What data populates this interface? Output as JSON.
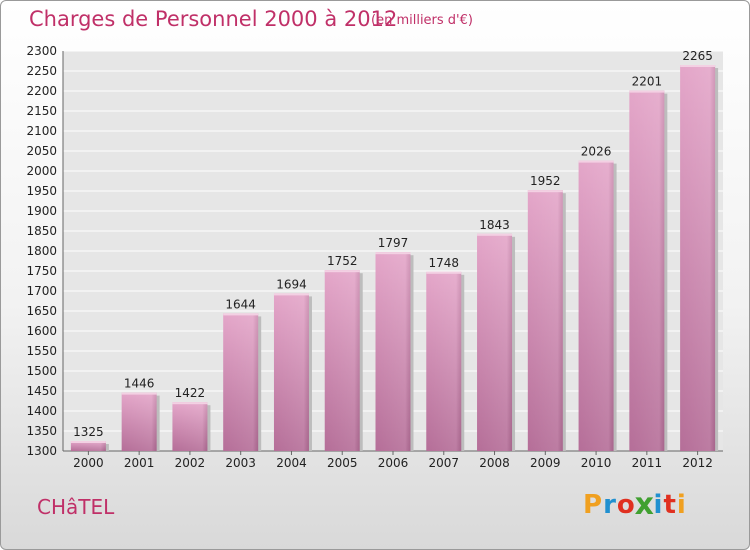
{
  "chart_data": {
    "type": "bar",
    "title": "Charges de Personnel 2000 à 2012",
    "subtitle": "(en milliers d'€)",
    "categories": [
      "2000",
      "2001",
      "2002",
      "2003",
      "2004",
      "2005",
      "2006",
      "2007",
      "2008",
      "2009",
      "2010",
      "2011",
      "2012"
    ],
    "values": [
      1325,
      1446,
      1422,
      1644,
      1694,
      1752,
      1797,
      1748,
      1843,
      1952,
      2026,
      2201,
      2265
    ],
    "ylim": [
      1300,
      2300
    ],
    "ytick_step": 50,
    "grid": true,
    "bar_color": "#d98ab4"
  },
  "footer": {
    "commune": "CHâTEL",
    "logo_letters": [
      "P",
      "r",
      "o",
      "x",
      "i",
      "t",
      "i"
    ],
    "logo_colors": [
      "#f0a020",
      "#2090d0",
      "#e03020",
      "#40a030",
      "#2090d0",
      "#e03020",
      "#f0a020"
    ]
  }
}
